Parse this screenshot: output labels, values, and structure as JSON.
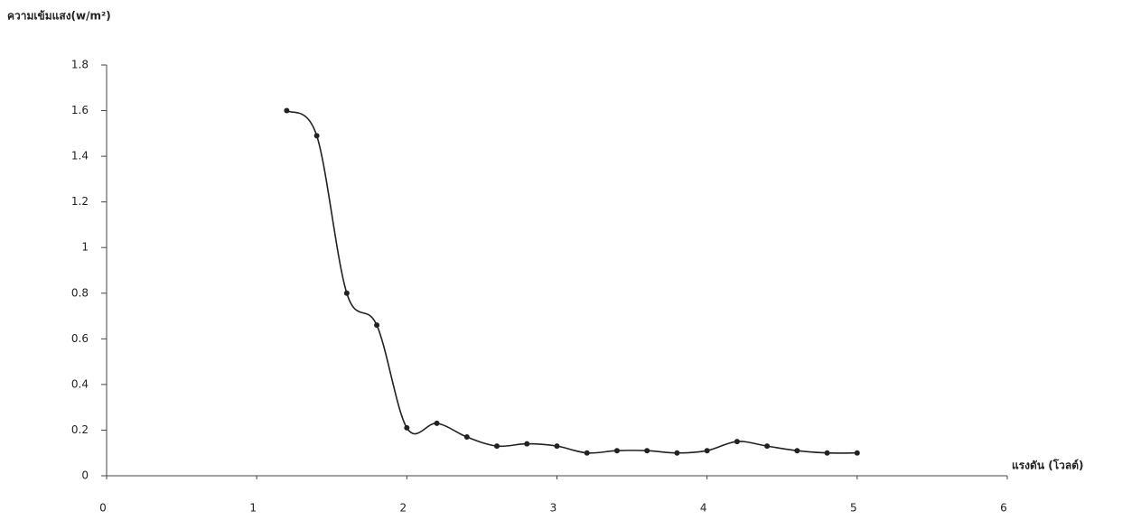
{
  "chart_data": {
    "type": "line",
    "y_label": "ความเข้มแสง(w/m²)",
    "x_label": "แรงดัน (โวลต์)",
    "x": [
      1.2,
      1.4,
      1.6,
      1.8,
      2.0,
      2.2,
      2.4,
      2.6,
      2.8,
      3.0,
      3.2,
      3.4,
      3.6,
      3.8,
      4.0,
      4.2,
      4.4,
      4.6,
      4.8,
      5.0
    ],
    "values": [
      1.6,
      1.49,
      0.8,
      0.66,
      0.21,
      0.23,
      0.17,
      0.13,
      0.14,
      0.13,
      0.1,
      0.11,
      0.11,
      0.1,
      0.11,
      0.15,
      0.13,
      0.11,
      0.1,
      0.1
    ],
    "color": "#222222",
    "xlim": [
      0,
      6
    ],
    "xticks": [
      0,
      1,
      2,
      3,
      4,
      5,
      6
    ],
    "ylim": [
      0,
      1.8
    ],
    "yticks": [
      0,
      0.2,
      0.4,
      0.6,
      0.8,
      1,
      1.2,
      1.4,
      1.6,
      1.8
    ]
  }
}
